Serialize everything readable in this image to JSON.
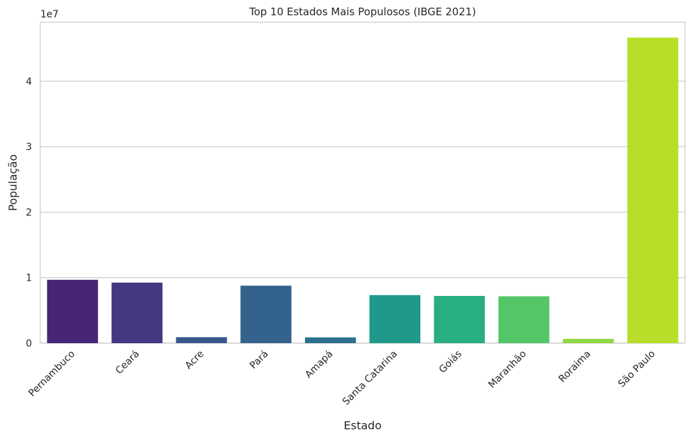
{
  "chart_data": {
    "type": "bar",
    "title": "Top 10 Estados Mais Populosos (IBGE 2021)",
    "xlabel": "Estado",
    "ylabel": "População",
    "y_offset_label": "1e7",
    "y_scale": 10000000,
    "categories": [
      "Pernambuco",
      "Ceará",
      "Acre",
      "Pará",
      "Amapá",
      "Santa Catarina",
      "Goiás",
      "Maranhão",
      "Roraima",
      "São Paulo"
    ],
    "values": [
      9674793,
      9240580,
      906876,
      8777124,
      877613,
      7338473,
      7206589,
      7153262,
      652713,
      46649132
    ],
    "colors": [
      "#482677",
      "#453781",
      "#39568c",
      "#33638d",
      "#2d708e",
      "#1f9a8a",
      "#29af7f",
      "#55c667",
      "#8fd744",
      "#b8de29"
    ],
    "yticks": [
      0,
      1,
      2,
      3,
      4
    ],
    "ylim": [
      0,
      4.9
    ],
    "grid": true,
    "x_tick_rotation": 45
  }
}
